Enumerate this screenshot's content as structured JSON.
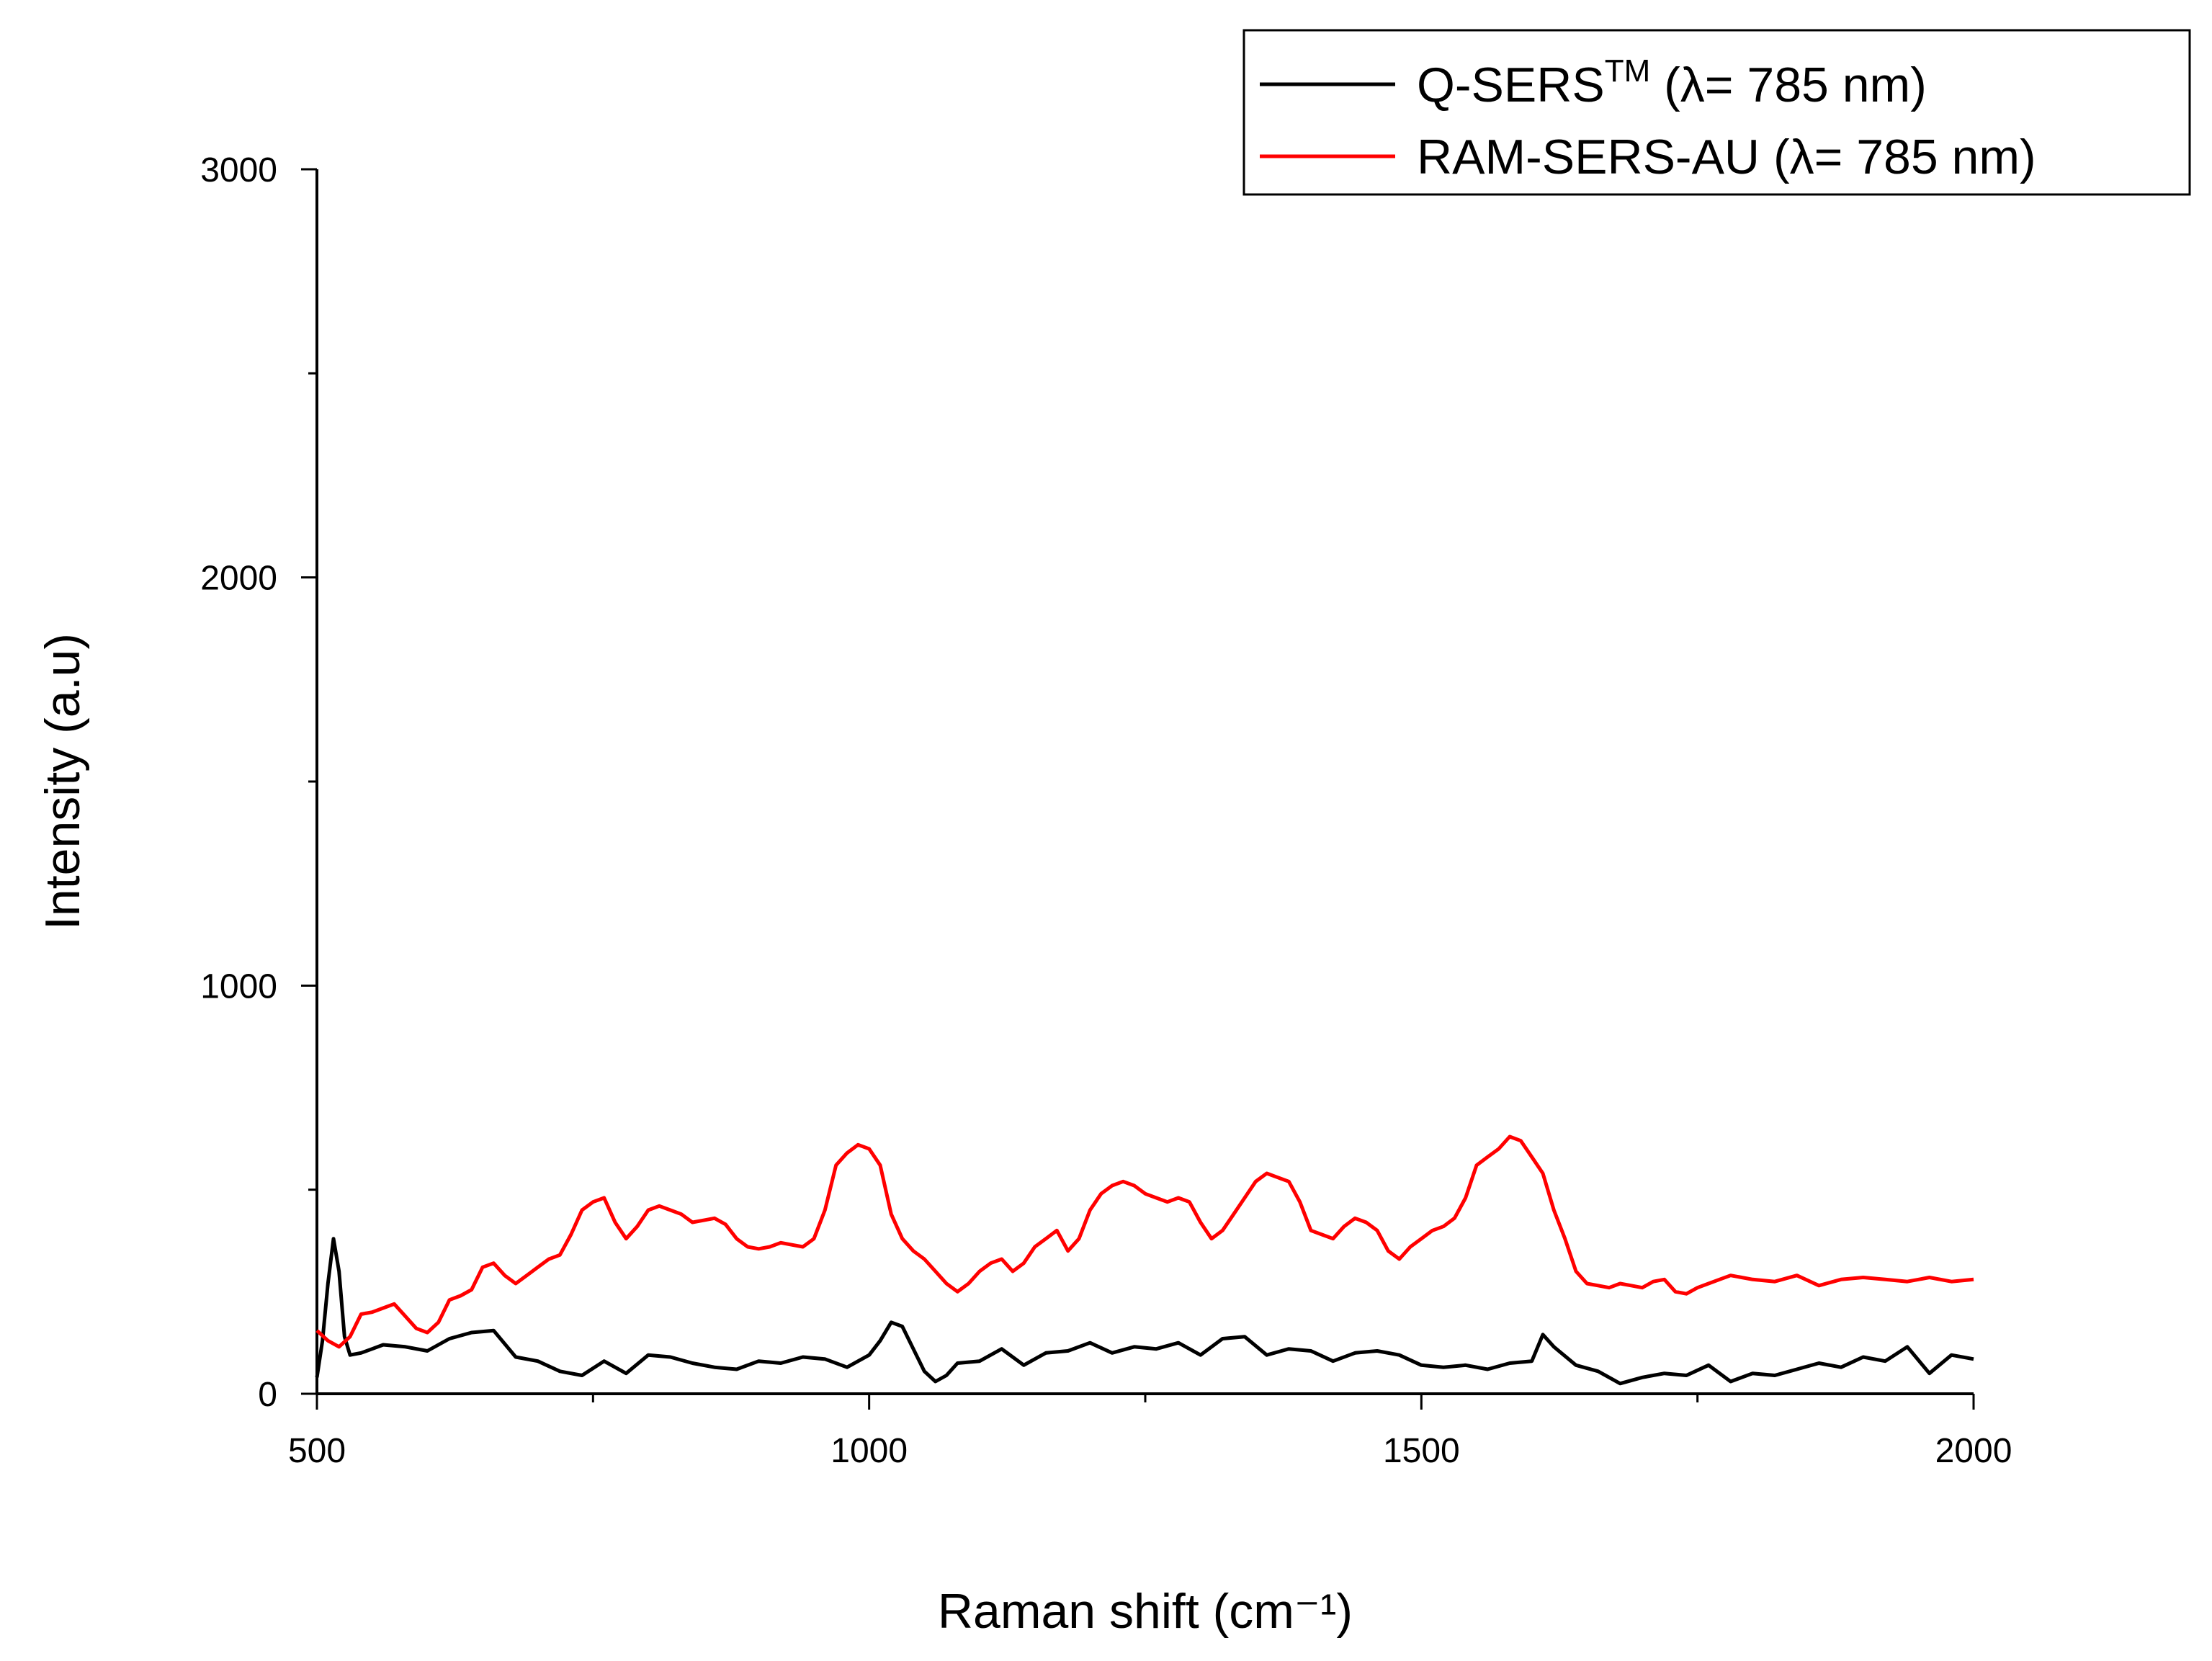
{
  "chart_data": {
    "type": "line",
    "title": "",
    "xlabel": "Raman shift (cm⁻¹)",
    "ylabel": "Intensity (a.u)",
    "xlim": [
      500,
      2000
    ],
    "ylim": [
      0,
      3000
    ],
    "xticks": [
      500,
      1000,
      1500,
      2000
    ],
    "yticks": [
      0,
      1000,
      2000,
      3000
    ],
    "grid": false,
    "legend_position": "top-right",
    "series": [
      {
        "name_main": "Q-SERS",
        "name_sup": "TM",
        "name_tail": " (λ= 785 nm)",
        "color": "#000000",
        "x": [
          500,
          505,
          510,
          515,
          520,
          525,
          530,
          540,
          550,
          560,
          580,
          600,
          620,
          640,
          660,
          680,
          700,
          720,
          740,
          760,
          780,
          800,
          820,
          840,
          860,
          880,
          900,
          920,
          940,
          960,
          980,
          1000,
          1010,
          1020,
          1030,
          1040,
          1050,
          1060,
          1070,
          1080,
          1100,
          1120,
          1140,
          1160,
          1180,
          1200,
          1220,
          1240,
          1260,
          1280,
          1300,
          1320,
          1340,
          1360,
          1380,
          1400,
          1420,
          1440,
          1460,
          1480,
          1500,
          1520,
          1540,
          1560,
          1580,
          1600,
          1610,
          1620,
          1640,
          1660,
          1680,
          1700,
          1720,
          1740,
          1760,
          1780,
          1800,
          1820,
          1840,
          1860,
          1880,
          1900,
          1920,
          1940,
          1960,
          1980,
          2000
        ],
        "y": [
          40,
          130,
          270,
          380,
          300,
          140,
          95,
          100,
          110,
          120,
          115,
          105,
          135,
          150,
          155,
          90,
          80,
          55,
          45,
          80,
          50,
          95,
          90,
          75,
          65,
          60,
          80,
          75,
          90,
          85,
          65,
          95,
          130,
          175,
          165,
          110,
          55,
          30,
          45,
          75,
          80,
          110,
          70,
          100,
          105,
          125,
          100,
          115,
          110,
          125,
          95,
          135,
          140,
          95,
          110,
          105,
          80,
          100,
          105,
          95,
          70,
          65,
          70,
          60,
          75,
          80,
          145,
          115,
          70,
          55,
          25,
          40,
          50,
          45,
          70,
          30,
          50,
          45,
          60,
          75,
          65,
          90,
          80,
          115,
          50,
          95,
          85
        ]
      },
      {
        "name_main": "RAM-SERS-AU",
        "name_sup": "",
        "name_tail": " (λ= 785 nm)",
        "color": "#ff0000",
        "x": [
          500,
          510,
          520,
          530,
          540,
          550,
          560,
          570,
          580,
          590,
          600,
          610,
          620,
          630,
          640,
          650,
          660,
          670,
          680,
          690,
          700,
          710,
          720,
          730,
          740,
          750,
          760,
          770,
          780,
          790,
          800,
          810,
          820,
          830,
          840,
          850,
          860,
          870,
          880,
          890,
          900,
          910,
          920,
          930,
          940,
          950,
          960,
          970,
          980,
          990,
          1000,
          1010,
          1020,
          1030,
          1040,
          1050,
          1060,
          1070,
          1080,
          1090,
          1100,
          1110,
          1120,
          1130,
          1140,
          1150,
          1160,
          1170,
          1180,
          1190,
          1200,
          1210,
          1220,
          1230,
          1240,
          1250,
          1260,
          1270,
          1280,
          1290,
          1300,
          1310,
          1320,
          1330,
          1340,
          1350,
          1360,
          1370,
          1380,
          1390,
          1400,
          1410,
          1420,
          1430,
          1440,
          1450,
          1460,
          1470,
          1480,
          1490,
          1500,
          1510,
          1520,
          1530,
          1540,
          1550,
          1560,
          1570,
          1580,
          1590,
          1600,
          1610,
          1620,
          1630,
          1640,
          1650,
          1660,
          1670,
          1680,
          1690,
          1700,
          1710,
          1720,
          1730,
          1740,
          1750,
          1760,
          1770,
          1780,
          1790,
          1800,
          1820,
          1840,
          1860,
          1880,
          1900,
          1920,
          1940,
          1960,
          1980,
          2000
        ],
        "y": [
          155,
          130,
          115,
          140,
          195,
          200,
          210,
          220,
          190,
          160,
          150,
          175,
          230,
          240,
          255,
          310,
          320,
          290,
          270,
          290,
          310,
          330,
          340,
          390,
          450,
          470,
          480,
          420,
          380,
          410,
          450,
          460,
          450,
          440,
          420,
          425,
          430,
          415,
          380,
          360,
          355,
          360,
          370,
          365,
          360,
          380,
          450,
          560,
          590,
          610,
          600,
          560,
          440,
          380,
          350,
          330,
          300,
          270,
          250,
          270,
          300,
          320,
          330,
          300,
          320,
          360,
          380,
          400,
          350,
          380,
          450,
          490,
          510,
          520,
          510,
          490,
          480,
          470,
          480,
          470,
          420,
          380,
          400,
          440,
          480,
          520,
          540,
          530,
          520,
          470,
          400,
          390,
          380,
          410,
          430,
          420,
          400,
          350,
          330,
          360,
          380,
          400,
          410,
          430,
          480,
          560,
          580,
          600,
          630,
          620,
          580,
          540,
          450,
          380,
          300,
          270,
          265,
          260,
          270,
          265,
          260,
          275,
          280,
          250,
          245,
          260,
          270,
          280,
          290,
          285,
          280,
          275,
          290,
          265,
          280,
          285,
          280,
          275,
          285,
          275,
          280
        ]
      }
    ]
  }
}
